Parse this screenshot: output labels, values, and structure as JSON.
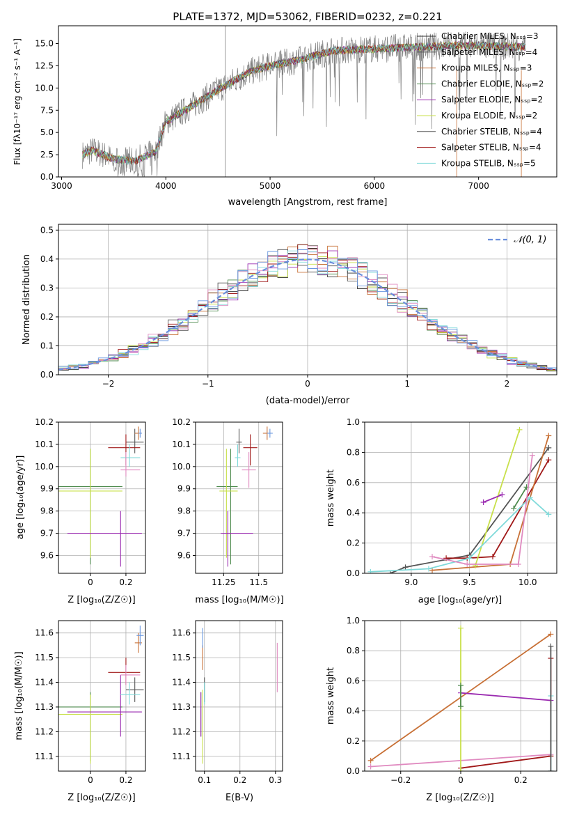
{
  "colors": {
    "series": [
      "#2e2e2e",
      "#444444",
      "#c87137",
      "#4d8a4d",
      "#9a2ab0",
      "#c8e04a",
      "#555555",
      "#a01818",
      "#80dada",
      "#e08ac0",
      "#6a98e0"
    ],
    "grid": "#b0b0b0",
    "normal_curve": "#6a8fdc"
  },
  "spectrum": {
    "title": "PLATE=1372, MJD=53062, FIBERID=0232, z=0.221",
    "xlabel": "wavelength [Angstrom, rest frame]",
    "ylabel": "Flux [fλ10⁻¹⁷ erg cm⁻² s⁻¹ A⁻¹]",
    "legend": [
      "Chabrier MILES, Nₛₛₚ=3",
      "Salpeter MILES, Nₛₛₚ=4",
      "Kroupa MILES, Nₛₛₚ=3",
      "Chabrier ELODIE, Nₛₛₚ=2",
      "Salpeter ELODIE, Nₛₛₚ=2",
      "Kroupa ELODIE, Nₛₛₚ=2",
      "Chabrier STELIB, Nₛₛₚ=4",
      "Salpeter STELIB, Nₛₛₚ=4",
      "Kroupa STELIB, Nₛₛₚ=5"
    ]
  },
  "residuals": {
    "xlabel": "(data-model)/error",
    "ylabel": "Normed distribution",
    "legend": "𝒩(0, 1)"
  },
  "panels": {
    "a_xlabel": "Z [log₁₀(Z/Z☉)]",
    "a_ylabel": "age  [log₁₀(age/yr)]",
    "b_xlabel": "mass [log₁₀(M/M☉)]",
    "c_xlabel": "age  [log₁₀(age/yr)]",
    "c_ylabel": "mass weight",
    "d_xlabel": "Z [log₁₀(Z/Z☉)]",
    "d_ylabel": "mass [log₁₀(M/M☉)]",
    "e_xlabel": "E(B-V)",
    "f_xlabel": "Z [log₁₀(Z/Z☉)]",
    "f_ylabel": "mass weight"
  },
  "chart_data": [
    {
      "type": "line",
      "title": "PLATE=1372, MJD=53062, FIBERID=0232, z=0.221",
      "xlim": [
        2970,
        7750
      ],
      "ylim": [
        0,
        17
      ],
      "xticks": [
        3000,
        4000,
        5000,
        6000,
        7000
      ],
      "yticks": [
        0.0,
        2.5,
        5.0,
        7.5,
        10.0,
        12.5,
        15.0
      ],
      "continuum": {
        "x": [
          3200,
          3300,
          3500,
          3700,
          3900,
          4000,
          4200,
          4500,
          4800,
          5000,
          5300,
          5600,
          6000,
          6400,
          6800,
          7200,
          7400
        ],
        "y": [
          2.5,
          3.0,
          2.0,
          1.8,
          2.8,
          6.2,
          7.6,
          9.8,
          11.8,
          12.5,
          13.2,
          14.2,
          14.4,
          14.6,
          14.8,
          14.7,
          14.6
        ]
      }
    },
    {
      "type": "bar",
      "xlim": [
        -2.5,
        2.5
      ],
      "ylim": [
        0,
        0.52
      ],
      "xticks": [
        -2,
        -1,
        0,
        1,
        2
      ],
      "yticks": [
        0.0,
        0.1,
        0.2,
        0.3,
        0.4,
        0.5
      ],
      "normal": {
        "mu": 0,
        "sigma": 1
      }
    },
    {
      "type": "scatter",
      "xlim": [
        -0.18,
        0.31
      ],
      "ylim": [
        9.52,
        10.2
      ],
      "xticks": [
        0.0,
        0.2
      ],
      "yticks": [
        9.6,
        9.7,
        9.8,
        9.9,
        10.0,
        10.1,
        10.2
      ],
      "points": [
        {
          "x": 0.0,
          "y": 9.91,
          "xerr": [
            0.18,
            0.18
          ],
          "yerr": [
            0.35,
            0.17
          ],
          "s": 3
        },
        {
          "x": 0.0,
          "y": 9.89,
          "xerr": [
            0.18,
            0.18
          ],
          "yerr": [
            0.3,
            0.19
          ],
          "s": 5
        },
        {
          "x": 0.17,
          "y": 9.7,
          "xerr": [
            0.3,
            0.12
          ],
          "yerr": [
            0.15,
            0.1
          ],
          "s": 4
        },
        {
          "x": 0.25,
          "y": 10.11,
          "xerr": [
            0.05,
            0.05
          ],
          "yerr": [
            0.05,
            0.06
          ],
          "s": 6
        },
        {
          "x": 0.2,
          "y": 10.085,
          "xerr": [
            0.1,
            0.08
          ],
          "yerr": [
            0.08,
            0.06
          ],
          "s": 7
        },
        {
          "x": 0.27,
          "y": 10.15,
          "xerr": [
            0.02,
            0.02
          ],
          "yerr": [
            0.03,
            0.03
          ],
          "s": 2
        },
        {
          "x": 0.22,
          "y": 10.04,
          "xerr": [
            0.05,
            0.06
          ],
          "yerr": [
            0.04,
            0.06
          ],
          "s": 8
        },
        {
          "x": 0.2,
          "y": 9.985,
          "xerr": [
            0.03,
            0.08
          ],
          "yerr": [
            0.03,
            0.08
          ],
          "s": 9
        },
        {
          "x": 0.28,
          "y": 10.15,
          "xerr": [
            0.01,
            0.01
          ],
          "yerr": [
            0.02,
            0.02
          ],
          "s": 10
        }
      ]
    },
    {
      "type": "scatter",
      "xlim": [
        11.05,
        11.67
      ],
      "ylim": [
        9.52,
        10.2
      ],
      "xticks": [
        11.25,
        11.5
      ],
      "yticks": [
        9.6,
        9.7,
        9.8,
        9.9,
        10.0,
        10.1,
        10.2
      ],
      "points": [
        {
          "x": 11.3,
          "y": 9.91,
          "xerr": [
            0.1,
            0.05
          ],
          "yerr": [
            0.35,
            0.17
          ],
          "s": 3
        },
        {
          "x": 11.27,
          "y": 9.89,
          "xerr": [
            0.05,
            0.08
          ],
          "yerr": [
            0.3,
            0.19
          ],
          "s": 5
        },
        {
          "x": 11.28,
          "y": 9.7,
          "xerr": [
            0.05,
            0.18
          ],
          "yerr": [
            0.15,
            0.1
          ],
          "s": 4
        },
        {
          "x": 11.36,
          "y": 10.11,
          "xerr": [
            0.02,
            0.02
          ],
          "yerr": [
            0.05,
            0.06
          ],
          "s": 6
        },
        {
          "x": 11.44,
          "y": 10.085,
          "xerr": [
            0.05,
            0.05
          ],
          "yerr": [
            0.08,
            0.06
          ],
          "s": 7
        },
        {
          "x": 11.56,
          "y": 10.15,
          "xerr": [
            0.03,
            0.03
          ],
          "yerr": [
            0.03,
            0.03
          ],
          "s": 2
        },
        {
          "x": 11.35,
          "y": 10.04,
          "xerr": [
            0.02,
            0.02
          ],
          "yerr": [
            0.04,
            0.06
          ],
          "s": 8
        },
        {
          "x": 11.43,
          "y": 9.985,
          "xerr": [
            0.05,
            0.05
          ],
          "yerr": [
            0.08,
            0.08
          ],
          "s": 9
        },
        {
          "x": 11.58,
          "y": 10.15,
          "xerr": [
            0.02,
            0.02
          ],
          "yerr": [
            0.02,
            0.02
          ],
          "s": 10
        }
      ]
    },
    {
      "type": "line",
      "xlim": [
        8.6,
        10.25
      ],
      "ylim": [
        0,
        1.0
      ],
      "xticks": [
        9.0,
        9.5,
        10.0
      ],
      "yticks": [
        0.0,
        0.2,
        0.4,
        0.6,
        0.8,
        1.0
      ],
      "series": [
        {
          "color": 6,
          "x": [
            8.82,
            8.95,
            9.5,
            10.18
          ],
          "y": [
            0.0,
            0.04,
            0.12,
            0.83
          ]
        },
        {
          "color": 7,
          "x": [
            9.3,
            9.48,
            9.7,
            10.18
          ],
          "y": [
            0.1,
            0.1,
            0.11,
            0.75
          ]
        },
        {
          "color": 2,
          "x": [
            9.18,
            9.85,
            10.18
          ],
          "y": [
            0.02,
            0.06,
            0.91
          ]
        },
        {
          "color": 5,
          "x": [
            9.55,
            9.93
          ],
          "y": [
            0.05,
            0.95
          ]
        },
        {
          "color": 4,
          "x": [
            9.62,
            9.78
          ],
          "y": [
            0.47,
            0.52
          ]
        },
        {
          "color": 3,
          "x": [
            9.88,
            9.99
          ],
          "y": [
            0.43,
            0.57
          ]
        },
        {
          "color": 8,
          "x": [
            8.65,
            9.15,
            9.5,
            10.02,
            10.18
          ],
          "y": [
            0.01,
            0.03,
            0.1,
            0.5,
            0.39
          ]
        },
        {
          "color": 9,
          "x": [
            9.18,
            9.48,
            9.92,
            10.04
          ],
          "y": [
            0.11,
            0.06,
            0.06,
            0.78
          ]
        }
      ]
    },
    {
      "type": "scatter",
      "xlim": [
        -0.18,
        0.31
      ],
      "ylim": [
        11.04,
        11.65
      ],
      "xticks": [
        0.0,
        0.2
      ],
      "yticks": [
        11.1,
        11.2,
        11.3,
        11.4,
        11.5,
        11.6
      ],
      "points": [
        {
          "x": 0.0,
          "y": 11.3,
          "xerr": [
            0.18,
            0.18
          ],
          "yerr": [
            0.22,
            0.06
          ],
          "s": 3
        },
        {
          "x": 0.0,
          "y": 11.27,
          "xerr": [
            0.18,
            0.18
          ],
          "yerr": [
            0.2,
            0.08
          ],
          "s": 5
        },
        {
          "x": 0.17,
          "y": 11.28,
          "xerr": [
            0.3,
            0.12
          ],
          "yerr": [
            0.1,
            0.15
          ],
          "s": 4
        },
        {
          "x": 0.25,
          "y": 11.37,
          "xerr": [
            0.05,
            0.05
          ],
          "yerr": [
            0.05,
            0.05
          ],
          "s": 6
        },
        {
          "x": 0.2,
          "y": 11.44,
          "xerr": [
            0.1,
            0.08
          ],
          "yerr": [
            0.05,
            0.06
          ],
          "s": 7
        },
        {
          "x": 0.27,
          "y": 11.56,
          "xerr": [
            0.02,
            0.02
          ],
          "yerr": [
            0.04,
            0.04
          ],
          "s": 2
        },
        {
          "x": 0.22,
          "y": 11.35,
          "xerr": [
            0.05,
            0.06
          ],
          "yerr": [
            0.04,
            0.05
          ],
          "s": 8
        },
        {
          "x": 0.2,
          "y": 11.43,
          "xerr": [
            0.03,
            0.08
          ],
          "yerr": [
            0.04,
            0.04
          ],
          "s": 9
        },
        {
          "x": 0.28,
          "y": 11.59,
          "xerr": [
            0.02,
            0.02
          ],
          "yerr": [
            0.04,
            0.04
          ],
          "s": 10
        }
      ]
    },
    {
      "type": "scatter",
      "xlim": [
        0.075,
        0.32
      ],
      "ylim": [
        11.04,
        11.65
      ],
      "xticks": [
        0.1,
        0.2,
        0.3
      ],
      "yticks": [
        11.1,
        11.2,
        11.3,
        11.4,
        11.5,
        11.6
      ],
      "points": [
        {
          "x": 0.09,
          "y": 11.3,
          "yerr": [
            0.12,
            0.06
          ],
          "s": 3
        },
        {
          "x": 0.095,
          "y": 11.27,
          "yerr": [
            0.2,
            0.1
          ],
          "s": 5
        },
        {
          "x": 0.09,
          "y": 11.28,
          "yerr": [
            0.1,
            0.08
          ],
          "s": 4
        },
        {
          "x": 0.1,
          "y": 11.37,
          "yerr": [
            0.05,
            0.05
          ],
          "s": 6
        },
        {
          "x": 0.095,
          "y": 11.5,
          "yerr": [
            0.05,
            0.05
          ],
          "s": 2
        },
        {
          "x": 0.1,
          "y": 11.35,
          "yerr": [
            0.04,
            0.05
          ],
          "s": 8
        },
        {
          "x": 0.305,
          "y": 11.46,
          "yerr": [
            0.1,
            0.1
          ],
          "s": 9
        },
        {
          "x": 0.095,
          "y": 11.58,
          "yerr": [
            0.04,
            0.04
          ],
          "s": 10
        }
      ]
    },
    {
      "type": "line",
      "xlim": [
        -0.32,
        0.32
      ],
      "ylim": [
        0,
        1.0
      ],
      "xticks": [
        -0.2,
        0.0,
        0.2
      ],
      "yticks": [
        0.0,
        0.2,
        0.4,
        0.6,
        0.8,
        1.0
      ],
      "series": [
        {
          "color": 2,
          "x": [
            -0.3,
            0.3
          ],
          "y": [
            0.07,
            0.91
          ]
        },
        {
          "color": 4,
          "x": [
            0.0,
            0.3
          ],
          "y": [
            0.52,
            0.47
          ]
        },
        {
          "color": 9,
          "x": [
            -0.3,
            0.3
          ],
          "y": [
            0.03,
            0.11
          ]
        },
        {
          "color": 7,
          "x": [
            0.0,
            0.3,
            0.3
          ],
          "y": [
            0.02,
            0.1,
            0.75
          ]
        },
        {
          "color": 5,
          "x": [
            0.0,
            0.0
          ],
          "y": [
            0.0,
            0.95
          ]
        },
        {
          "color": 3,
          "x": [
            0.0,
            0.0
          ],
          "y": [
            0.43,
            0.57
          ]
        },
        {
          "color": 8,
          "x": [
            0.3,
            0.3
          ],
          "y": [
            0.0,
            0.5
          ]
        },
        {
          "color": 6,
          "x": [
            0.3,
            0.3
          ],
          "y": [
            0.0,
            0.83
          ]
        }
      ]
    }
  ]
}
